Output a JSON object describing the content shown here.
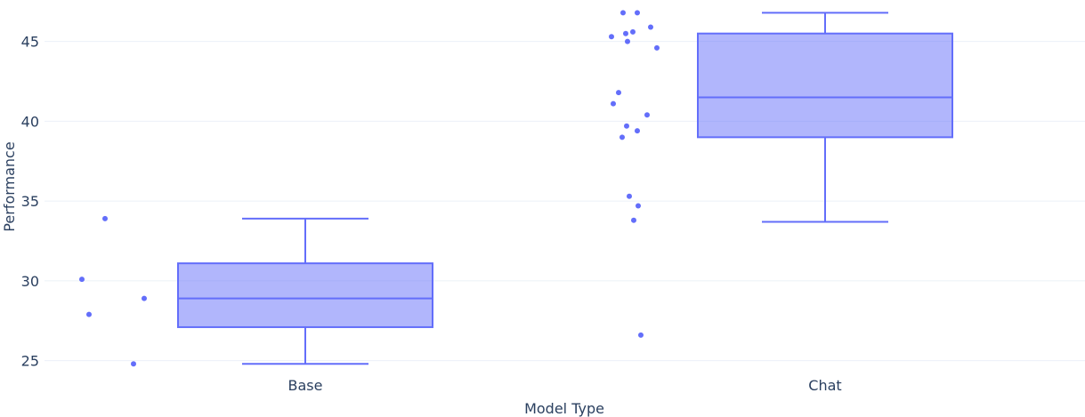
{
  "chart_data": {
    "type": "box",
    "title": "",
    "xlabel": "Model Type",
    "ylabel": "Performance",
    "categories": [
      "Base",
      "Chat"
    ],
    "ylim": [
      24.2,
      47.6
    ],
    "yticks": [
      25,
      30,
      35,
      40,
      45
    ],
    "grid": true,
    "legend": "none",
    "boxes": [
      {
        "category": "Base",
        "min": 24.8,
        "q1": 27.1,
        "median": 28.9,
        "q3": 31.1,
        "max": 33.9,
        "points": [
          33.9,
          30.1,
          28.9,
          27.9,
          24.8
        ]
      },
      {
        "category": "Chat",
        "min": 33.7,
        "q1": 39.0,
        "median": 41.5,
        "q3": 45.5,
        "max": 46.8,
        "points": [
          46.8,
          46.8,
          45.9,
          45.6,
          45.5,
          45.3,
          45.0,
          44.6,
          41.8,
          41.1,
          40.4,
          39.7,
          39.4,
          39.0,
          35.3,
          34.7,
          33.8,
          26.6
        ]
      }
    ],
    "colors": {
      "line": "#636efa",
      "fill": "rgba(99,110,250,0.5)",
      "grid": "#ebf0f8",
      "text": "#2a3f5f"
    }
  }
}
